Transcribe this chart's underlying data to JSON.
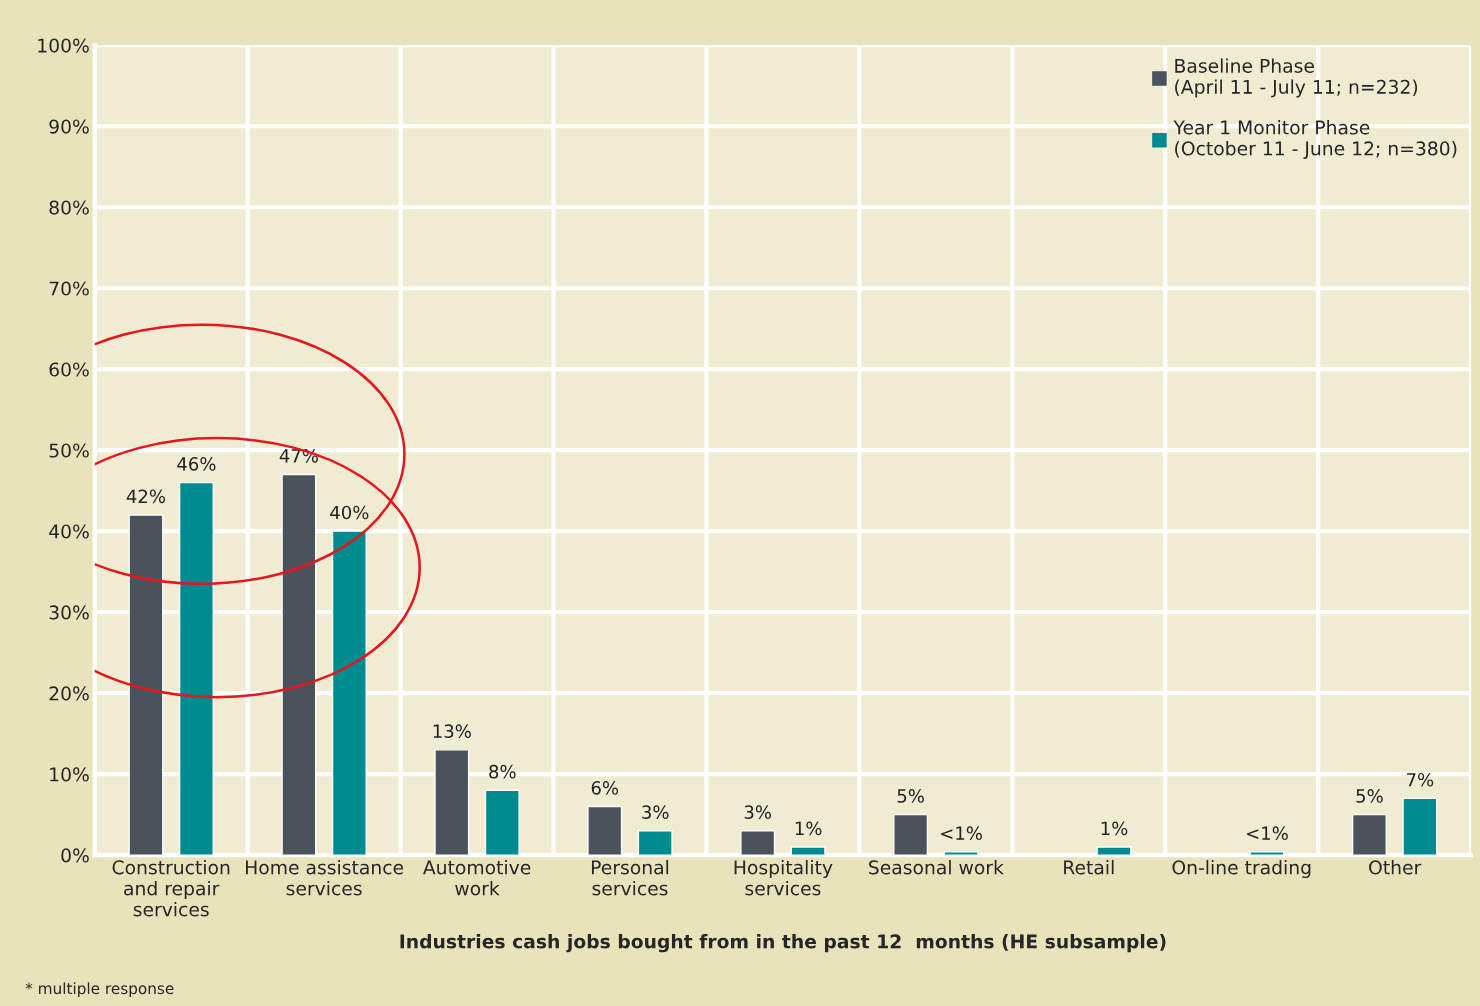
{
  "chart_data": {
    "type": "bar",
    "xlabel": "Industries cash jobs bought from in the past 12  months (HE subsample)",
    "categories": [
      "Construction\nand repair\nservices",
      "Home assistance\nservices",
      "Automotive\nwork",
      "Personal\nservices",
      "Hospitality\nservices",
      "Seasonal work",
      "Retail",
      "On-line trading",
      "Other"
    ],
    "series": [
      {
        "name": "Baseline Phase\n(April 11 - July 11; n=232)",
        "color": "#4a525c",
        "values": [
          42,
          47,
          13,
          6,
          3,
          5,
          null,
          null,
          5
        ],
        "value_labels": [
          "42%",
          "47%",
          "13%",
          "6%",
          "3%",
          "5%",
          null,
          null,
          "5%"
        ]
      },
      {
        "name": "Year 1 Monitor Phase\n(October 11 - June 12; n=380)",
        "color": "#008b8f",
        "values": [
          46,
          40,
          8,
          3,
          1,
          0.4,
          1,
          0.4,
          7
        ],
        "value_labels": [
          "46%",
          "40%",
          "8%",
          "3%",
          "1%",
          "<1%",
          "1%",
          "<1%",
          "7%"
        ]
      }
    ],
    "ylim": [
      0,
      100
    ],
    "yticks": [
      {
        "value": 0,
        "label": "0%"
      },
      {
        "value": 10,
        "label": "10%"
      },
      {
        "value": 20,
        "label": "20%"
      },
      {
        "value": 30,
        "label": "30%"
      },
      {
        "value": 40,
        "label": "40%"
      },
      {
        "value": 50,
        "label": "50%"
      },
      {
        "value": 60,
        "label": "60%"
      },
      {
        "value": 70,
        "label": "70%"
      },
      {
        "value": 80,
        "label": "80%"
      },
      {
        "value": 90,
        "label": "90%"
      },
      {
        "value": 100,
        "label": "100%"
      }
    ],
    "grid": true,
    "legend": "top right",
    "annotations": [
      "* multiple response"
    ]
  }
}
